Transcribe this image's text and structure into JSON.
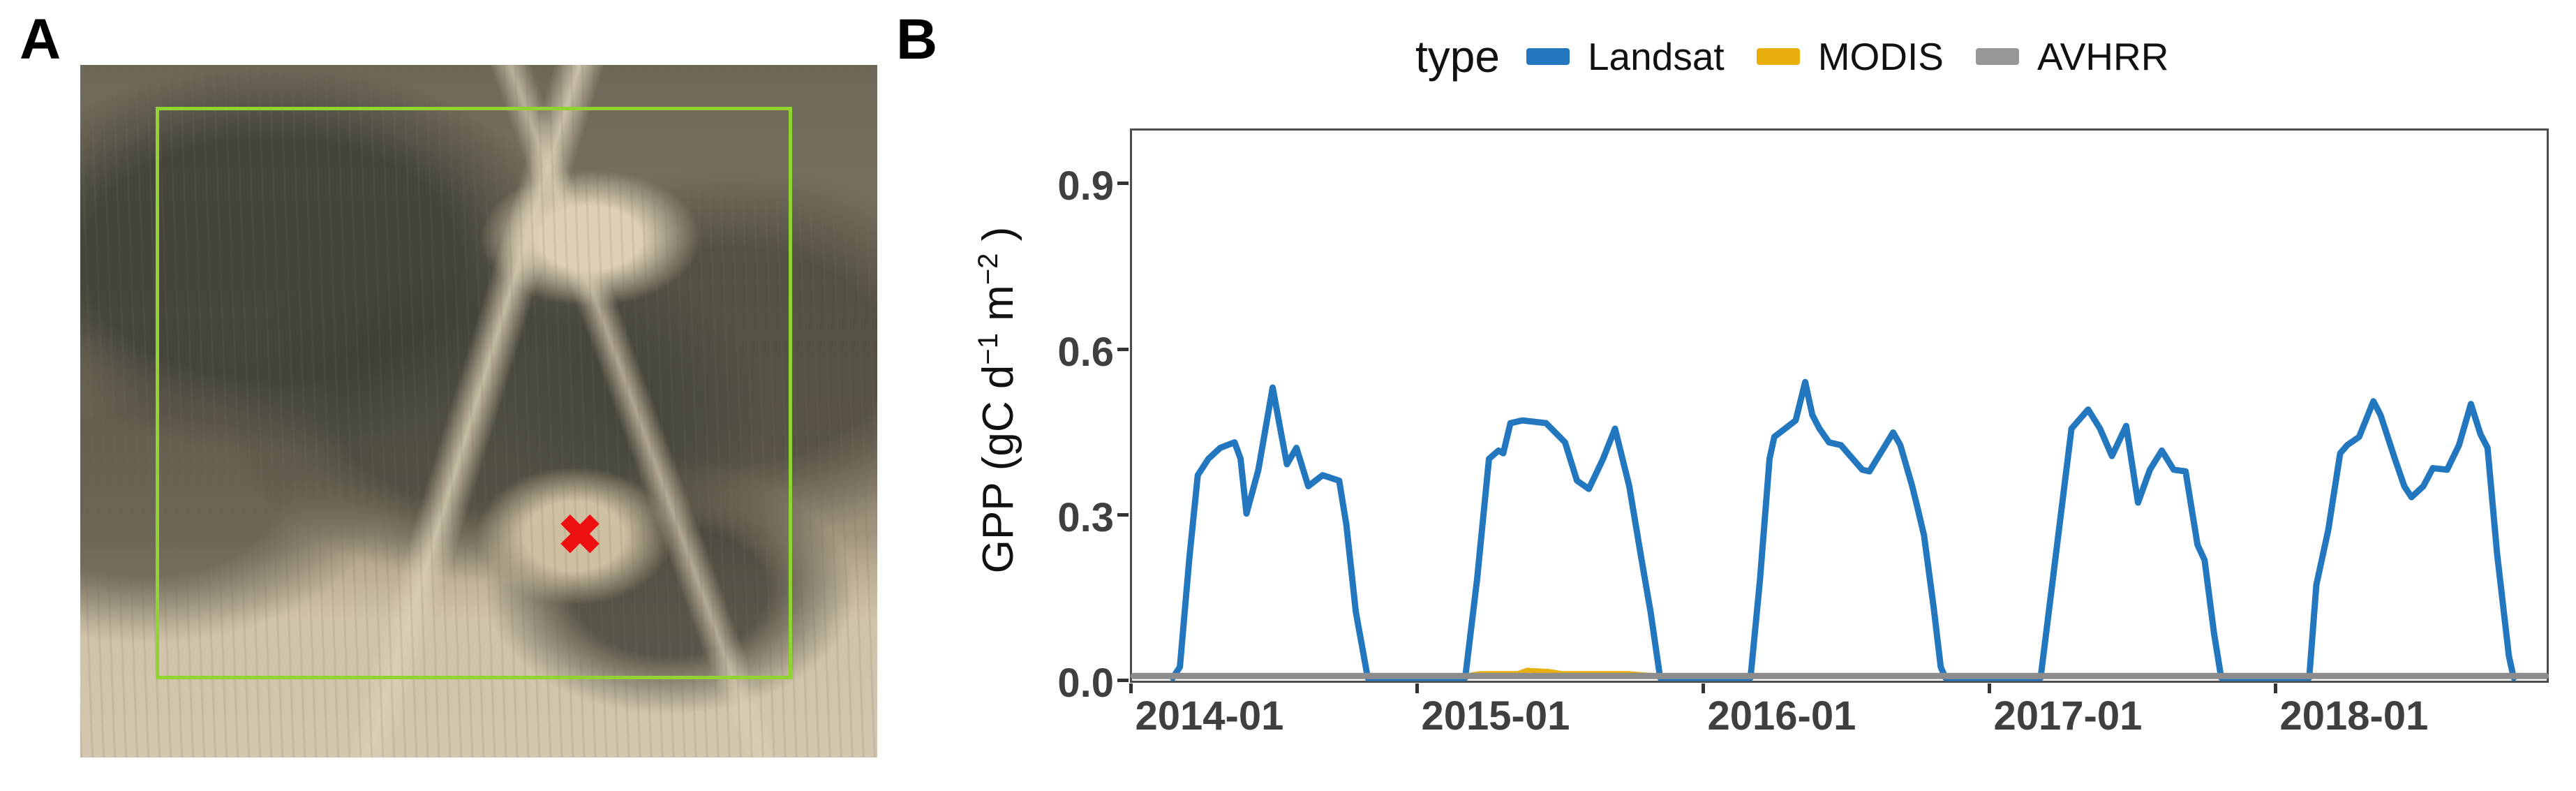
{
  "figure": {
    "panel_a_label": "A",
    "panel_b_label": "B"
  },
  "map": {
    "marker_glyph": "✖",
    "marker_color": "#ee1010",
    "footprint_box_color": "#8fd431"
  },
  "legend": {
    "title": "type",
    "items": [
      {
        "label": "Landsat",
        "color": "#2377be"
      },
      {
        "label": "MODIS",
        "color": "#e9af0c"
      },
      {
        "label": "AVHRR",
        "color": "#979797"
      }
    ]
  },
  "chart_data": {
    "type": "line",
    "title": "",
    "xlabel": "",
    "ylabel": "GPP (gC d−1 m−2)",
    "ylabel_parts": {
      "prefix": "GPP (gC d",
      "sup1": "−1",
      "mid": " m",
      "sup2": "−2",
      "suffix": " )"
    },
    "x_unit": "months since 2014-01-01",
    "xlim_months": [
      0,
      59.5
    ],
    "ylim": [
      0,
      1.0
    ],
    "grid": false,
    "legend_position": "top",
    "x_ticks": [
      {
        "m": 0,
        "label": "2014-01"
      },
      {
        "m": 12,
        "label": "2015-01"
      },
      {
        "m": 24,
        "label": "2016-01"
      },
      {
        "m": 36,
        "label": "2017-01"
      },
      {
        "m": 48,
        "label": "2018-01"
      }
    ],
    "y_ticks": [
      {
        "v": 0.0,
        "label": "0.0"
      },
      {
        "v": 0.3,
        "label": "0.3"
      },
      {
        "v": 0.6,
        "label": "0.6"
      },
      {
        "v": 0.9,
        "label": "0.9"
      }
    ],
    "series": [
      {
        "name": "Landsat",
        "color": "#2377be",
        "width": 9,
        "points": [
          [
            1.7,
            0
          ],
          [
            2.0,
            0.02
          ],
          [
            2.4,
            0.22
          ],
          [
            2.75,
            0.37
          ],
          [
            3.2,
            0.4
          ],
          [
            3.7,
            0.42
          ],
          [
            4.3,
            0.43
          ],
          [
            4.55,
            0.4
          ],
          [
            4.8,
            0.3
          ],
          [
            5.3,
            0.38
          ],
          [
            5.9,
            0.53
          ],
          [
            6.2,
            0.46
          ],
          [
            6.5,
            0.39
          ],
          [
            6.9,
            0.42
          ],
          [
            7.4,
            0.35
          ],
          [
            8.0,
            0.37
          ],
          [
            8.7,
            0.36
          ],
          [
            9.0,
            0.28
          ],
          [
            9.4,
            0.12
          ],
          [
            9.9,
            0
          ],
          [
            14.0,
            0
          ],
          [
            14.5,
            0.18
          ],
          [
            15.0,
            0.4
          ],
          [
            15.4,
            0.415
          ],
          [
            15.6,
            0.41
          ],
          [
            15.9,
            0.465
          ],
          [
            16.4,
            0.47
          ],
          [
            17.4,
            0.465
          ],
          [
            18.2,
            0.43
          ],
          [
            18.7,
            0.36
          ],
          [
            19.2,
            0.345
          ],
          [
            19.8,
            0.4
          ],
          [
            20.3,
            0.455
          ],
          [
            20.9,
            0.35
          ],
          [
            21.4,
            0.22
          ],
          [
            21.8,
            0.12
          ],
          [
            22.2,
            0
          ],
          [
            26.0,
            0
          ],
          [
            26.4,
            0.18
          ],
          [
            26.8,
            0.4
          ],
          [
            27.0,
            0.44
          ],
          [
            27.3,
            0.45
          ],
          [
            27.6,
            0.46
          ],
          [
            27.9,
            0.47
          ],
          [
            28.3,
            0.54
          ],
          [
            28.6,
            0.48
          ],
          [
            28.9,
            0.455
          ],
          [
            29.3,
            0.43
          ],
          [
            29.8,
            0.425
          ],
          [
            30.1,
            0.41
          ],
          [
            30.7,
            0.38
          ],
          [
            31.0,
            0.377
          ],
          [
            32.0,
            0.448
          ],
          [
            32.3,
            0.425
          ],
          [
            32.8,
            0.35
          ],
          [
            33.0,
            0.315
          ],
          [
            33.3,
            0.26
          ],
          [
            33.7,
            0.13
          ],
          [
            34.0,
            0.02
          ],
          [
            34.2,
            0
          ],
          [
            38.2,
            0
          ],
          [
            38.8,
            0.21
          ],
          [
            39.5,
            0.455
          ],
          [
            40.2,
            0.49
          ],
          [
            40.7,
            0.455
          ],
          [
            41.2,
            0.405
          ],
          [
            41.8,
            0.46
          ],
          [
            42.3,
            0.32
          ],
          [
            42.8,
            0.38
          ],
          [
            43.3,
            0.415
          ],
          [
            43.8,
            0.38
          ],
          [
            44.3,
            0.377
          ],
          [
            44.8,
            0.243
          ],
          [
            45.1,
            0.215
          ],
          [
            45.5,
            0.08
          ],
          [
            45.8,
            0
          ],
          [
            49.5,
            0
          ],
          [
            49.8,
            0.17
          ],
          [
            50.3,
            0.27
          ],
          [
            50.8,
            0.41
          ],
          [
            51.1,
            0.425
          ],
          [
            51.6,
            0.44
          ],
          [
            52.2,
            0.505
          ],
          [
            52.5,
            0.48
          ],
          [
            53.1,
            0.4
          ],
          [
            53.5,
            0.35
          ],
          [
            53.8,
            0.33
          ],
          [
            54.3,
            0.35
          ],
          [
            54.7,
            0.383
          ],
          [
            55.3,
            0.38
          ],
          [
            55.8,
            0.425
          ],
          [
            56.3,
            0.5
          ],
          [
            56.7,
            0.445
          ],
          [
            57.0,
            0.42
          ],
          [
            57.4,
            0.227
          ],
          [
            57.9,
            0.04
          ],
          [
            58.1,
            0
          ]
        ]
      },
      {
        "name": "MODIS",
        "color": "#e9af0c",
        "width": 7,
        "points": [
          [
            13.9,
            0.003
          ],
          [
            14.6,
            0.008
          ],
          [
            16.2,
            0.008
          ],
          [
            16.6,
            0.014
          ],
          [
            17.5,
            0.012
          ],
          [
            18.1,
            0.008
          ],
          [
            20.9,
            0.008
          ],
          [
            22.3,
            0.003
          ]
        ]
      },
      {
        "name": "AVHRR",
        "color": "#8c8c8c",
        "width": 9,
        "points": [
          [
            0.05,
            0.0035
          ],
          [
            59.45,
            0.0035
          ]
        ]
      }
    ]
  }
}
